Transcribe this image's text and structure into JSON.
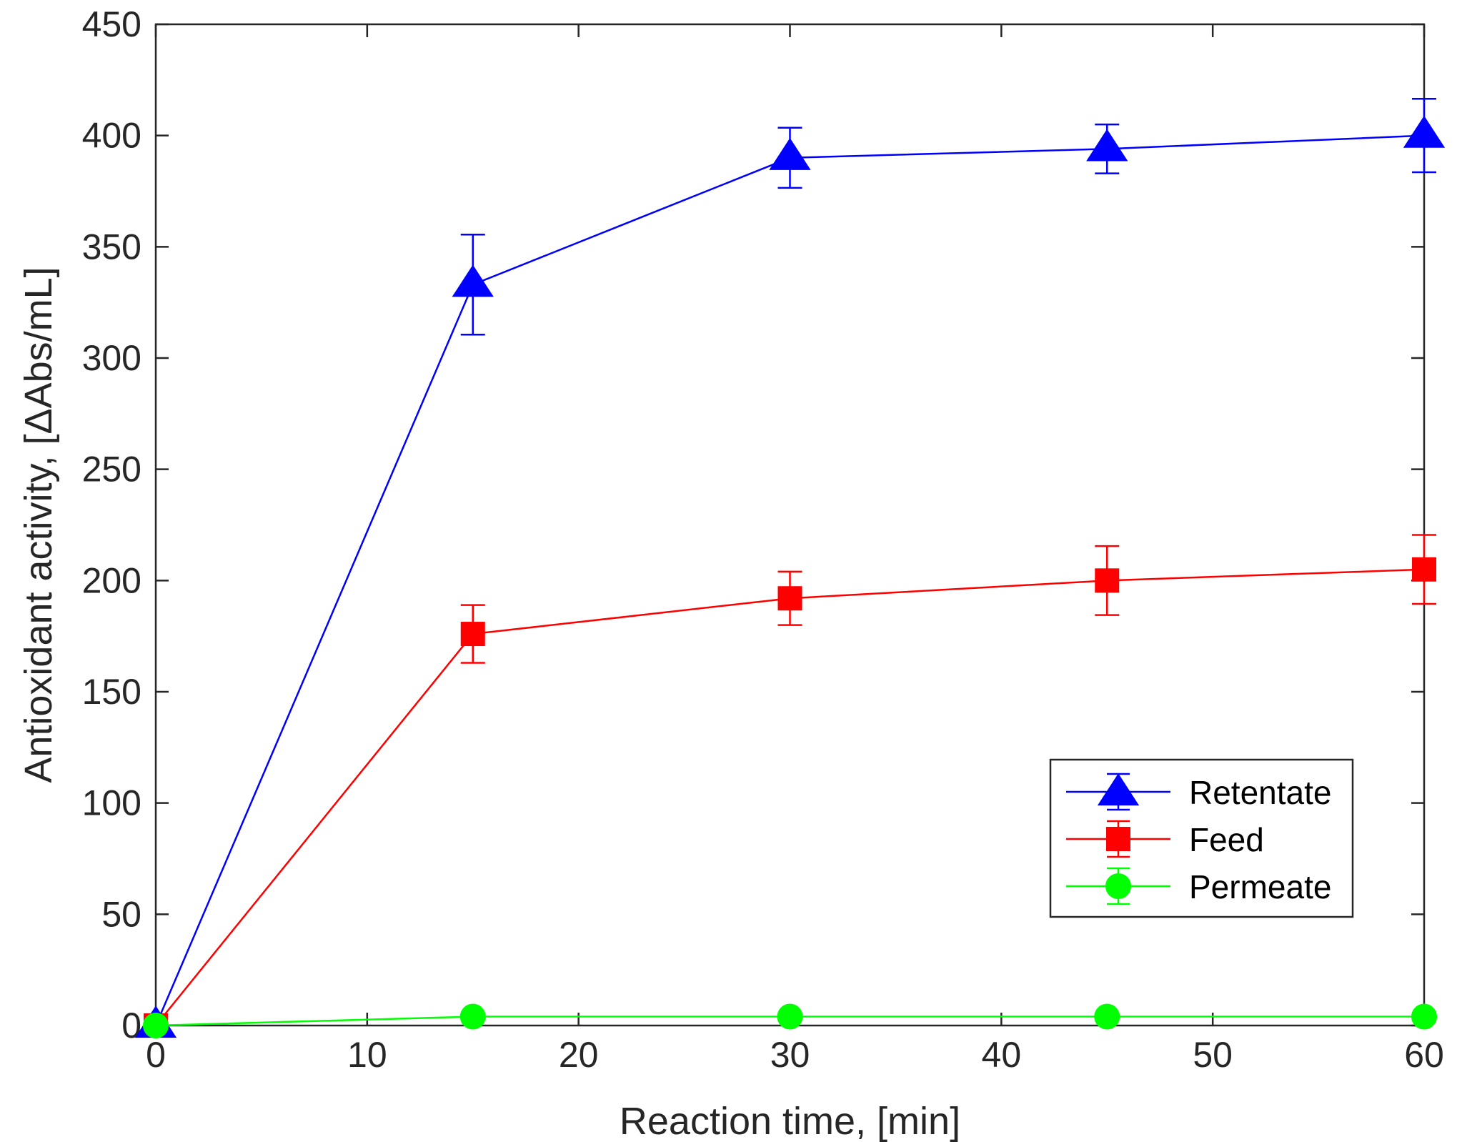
{
  "chart_data": {
    "type": "line",
    "title": "",
    "xlabel": "Reaction time, [min]",
    "ylabel": "Antioxidant activity, [ΔAbs/mL]",
    "xlim": [
      0,
      60
    ],
    "ylim": [
      0,
      450
    ],
    "xticks": [
      0,
      10,
      20,
      30,
      40,
      50,
      60
    ],
    "yticks": [
      0,
      50,
      100,
      150,
      200,
      250,
      300,
      350,
      400,
      450
    ],
    "grid": false,
    "legend_position": "lower-right",
    "x": [
      0,
      15,
      30,
      45,
      60
    ],
    "series": [
      {
        "name": "Retentate",
        "color": "#0000ff",
        "marker": "triangle",
        "values": [
          0,
          333,
          390,
          394,
          400
        ],
        "errors": [
          0,
          22.5,
          13.5,
          11,
          16.5
        ]
      },
      {
        "name": "Feed",
        "color": "#ff0000",
        "marker": "square",
        "values": [
          0,
          176,
          192,
          200,
          205
        ],
        "errors": [
          0,
          13,
          12,
          15.5,
          15.5
        ]
      },
      {
        "name": "Permeate",
        "color": "#00ff00",
        "marker": "circle",
        "values": [
          0,
          4,
          4,
          4,
          4
        ],
        "errors": [
          0,
          0,
          0,
          0,
          0
        ]
      }
    ]
  }
}
